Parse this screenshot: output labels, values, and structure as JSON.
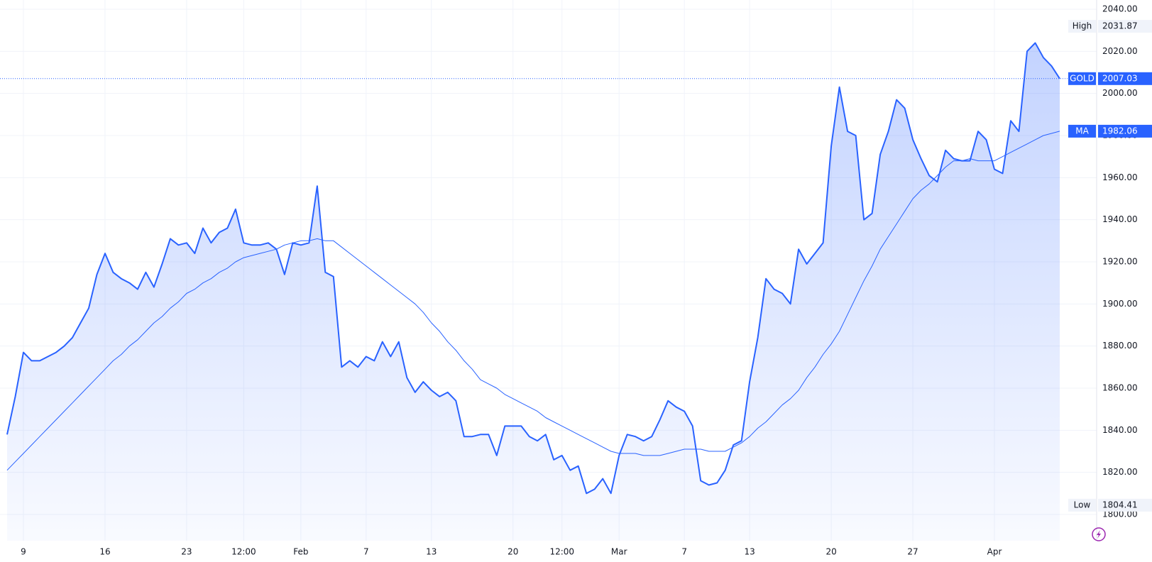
{
  "chart_data": {
    "type": "line",
    "x": [
      null,
      null,
      "9",
      null,
      null,
      null,
      null,
      null,
      null,
      null,
      null,
      null,
      "16",
      null,
      null,
      null,
      null,
      null,
      null,
      null,
      null,
      null,
      "23",
      null,
      null,
      null,
      null,
      null,
      null,
      "12:00",
      null,
      null,
      null,
      null,
      null,
      null,
      "Feb",
      null,
      null,
      null,
      null,
      null,
      null,
      null,
      "7",
      null,
      null,
      null,
      null,
      null,
      null,
      null,
      "13",
      null,
      null,
      null,
      null,
      null,
      null,
      null,
      null,
      null,
      "20",
      null,
      null,
      null,
      null,
      null,
      "12:00",
      null,
      null,
      null,
      null,
      null,
      null,
      "Mar",
      null,
      null,
      null,
      null,
      null,
      null,
      null,
      "7",
      null,
      null,
      null,
      null,
      null,
      null,
      null,
      "13",
      null,
      null,
      null,
      null,
      null,
      null,
      null,
      null,
      null,
      "20",
      null,
      null,
      null,
      null,
      null,
      null,
      null,
      null,
      null,
      "27",
      null,
      null,
      null,
      null,
      null,
      null,
      null,
      null,
      null,
      "Apr",
      null,
      null,
      null,
      null,
      null,
      null,
      null,
      null
    ],
    "series": [
      {
        "name": "GOLD",
        "color": "#2962ff",
        "values": [
          1838,
          1856,
          1877,
          1873,
          1873,
          1875,
          1877,
          1880,
          1884,
          1891,
          1898,
          1914,
          1924,
          1915,
          1912,
          1910,
          1907,
          1915,
          1908,
          1919,
          1931,
          1928,
          1929,
          1924,
          1936,
          1929,
          1934,
          1936,
          1945,
          1929,
          1928,
          1928,
          1929,
          1926,
          1914,
          1929,
          1928,
          1929,
          1956,
          1915,
          1913,
          1870,
          1873,
          1870,
          1875,
          1873,
          1882,
          1875,
          1882,
          1865,
          1858,
          1863,
          1859,
          1856,
          1858,
          1854,
          1837,
          1837,
          1838,
          1838,
          1828,
          1842,
          1842,
          1842,
          1837,
          1835,
          1838,
          1826,
          1828,
          1821,
          1823,
          1810,
          1812,
          1817,
          1810,
          1828,
          1838,
          1837,
          1835,
          1837,
          1845,
          1854,
          1851,
          1849,
          1842,
          1816,
          1814,
          1815,
          1821,
          1833,
          1835,
          1863,
          1884,
          1912,
          1907,
          1905,
          1900,
          1926,
          1919,
          1924,
          1929,
          1975,
          2003,
          1982,
          1980,
          1940,
          1943,
          1971,
          1982,
          1997,
          1993,
          1978,
          1969,
          1961,
          1958,
          1973,
          1969,
          1968,
          1968,
          1982,
          1978,
          1964,
          1962,
          1987,
          1982,
          2020,
          2024,
          2017,
          2013,
          2007.03
        ]
      },
      {
        "name": "MA",
        "color": "#2962ff",
        "values": [
          1821,
          1825,
          1829,
          1833,
          1837,
          1841,
          1845,
          1849,
          1853,
          1857,
          1861,
          1865,
          1869,
          1873,
          1876,
          1880,
          1883,
          1887,
          1891,
          1894,
          1898,
          1901,
          1905,
          1907,
          1910,
          1912,
          1915,
          1917,
          1920,
          1922,
          1923,
          1924,
          1925,
          1926,
          1928,
          1929,
          1930,
          1930,
          1931,
          1930,
          1930,
          1927,
          1924,
          1921,
          1918,
          1915,
          1912,
          1909,
          1906,
          1903,
          1900,
          1896,
          1891,
          1887,
          1882,
          1878,
          1873,
          1869,
          1864,
          1862,
          1860,
          1857,
          1855,
          1853,
          1851,
          1849,
          1846,
          1844,
          1842,
          1840,
          1838,
          1836,
          1834,
          1832,
          1830,
          1829,
          1829,
          1829,
          1828,
          1828,
          1828,
          1829,
          1830,
          1831,
          1831,
          1831,
          1830,
          1830,
          1830,
          1832,
          1834,
          1837,
          1841,
          1844,
          1848,
          1852,
          1855,
          1859,
          1865,
          1870,
          1876,
          1881,
          1887,
          1895,
          1903,
          1911,
          1918,
          1926,
          1932,
          1938,
          1944,
          1950,
          1954,
          1957,
          1961,
          1965,
          1968,
          1968,
          1969,
          1968,
          1968,
          1968,
          1970,
          1972,
          1974,
          1976,
          1978,
          1980,
          1981,
          1982.06
        ]
      }
    ],
    "markers": [
      {
        "name": "High",
        "value": 2031.87
      },
      {
        "name": "Low",
        "value": 1804.41
      }
    ],
    "ylim": [
      1800,
      2040
    ],
    "yticks": [
      {
        "value": 1800,
        "label": "1800.00"
      },
      {
        "value": 1820,
        "label": "1820.00"
      },
      {
        "value": 1840,
        "label": "1840.00"
      },
      {
        "value": 1860,
        "label": "1860.00"
      },
      {
        "value": 1880,
        "label": "1880.00"
      },
      {
        "value": 1900,
        "label": "1900.00"
      },
      {
        "value": 1920,
        "label": "1920.00"
      },
      {
        "value": 1940,
        "label": "1940.00"
      },
      {
        "value": 1960,
        "label": "1960.00"
      },
      {
        "value": 1980,
        "label": "1980.00"
      },
      {
        "value": 2000,
        "label": "2000.00"
      },
      {
        "value": 2020,
        "label": "2020.00"
      },
      {
        "value": 2040,
        "label": "2040.00"
      }
    ],
    "grid": true
  }
}
